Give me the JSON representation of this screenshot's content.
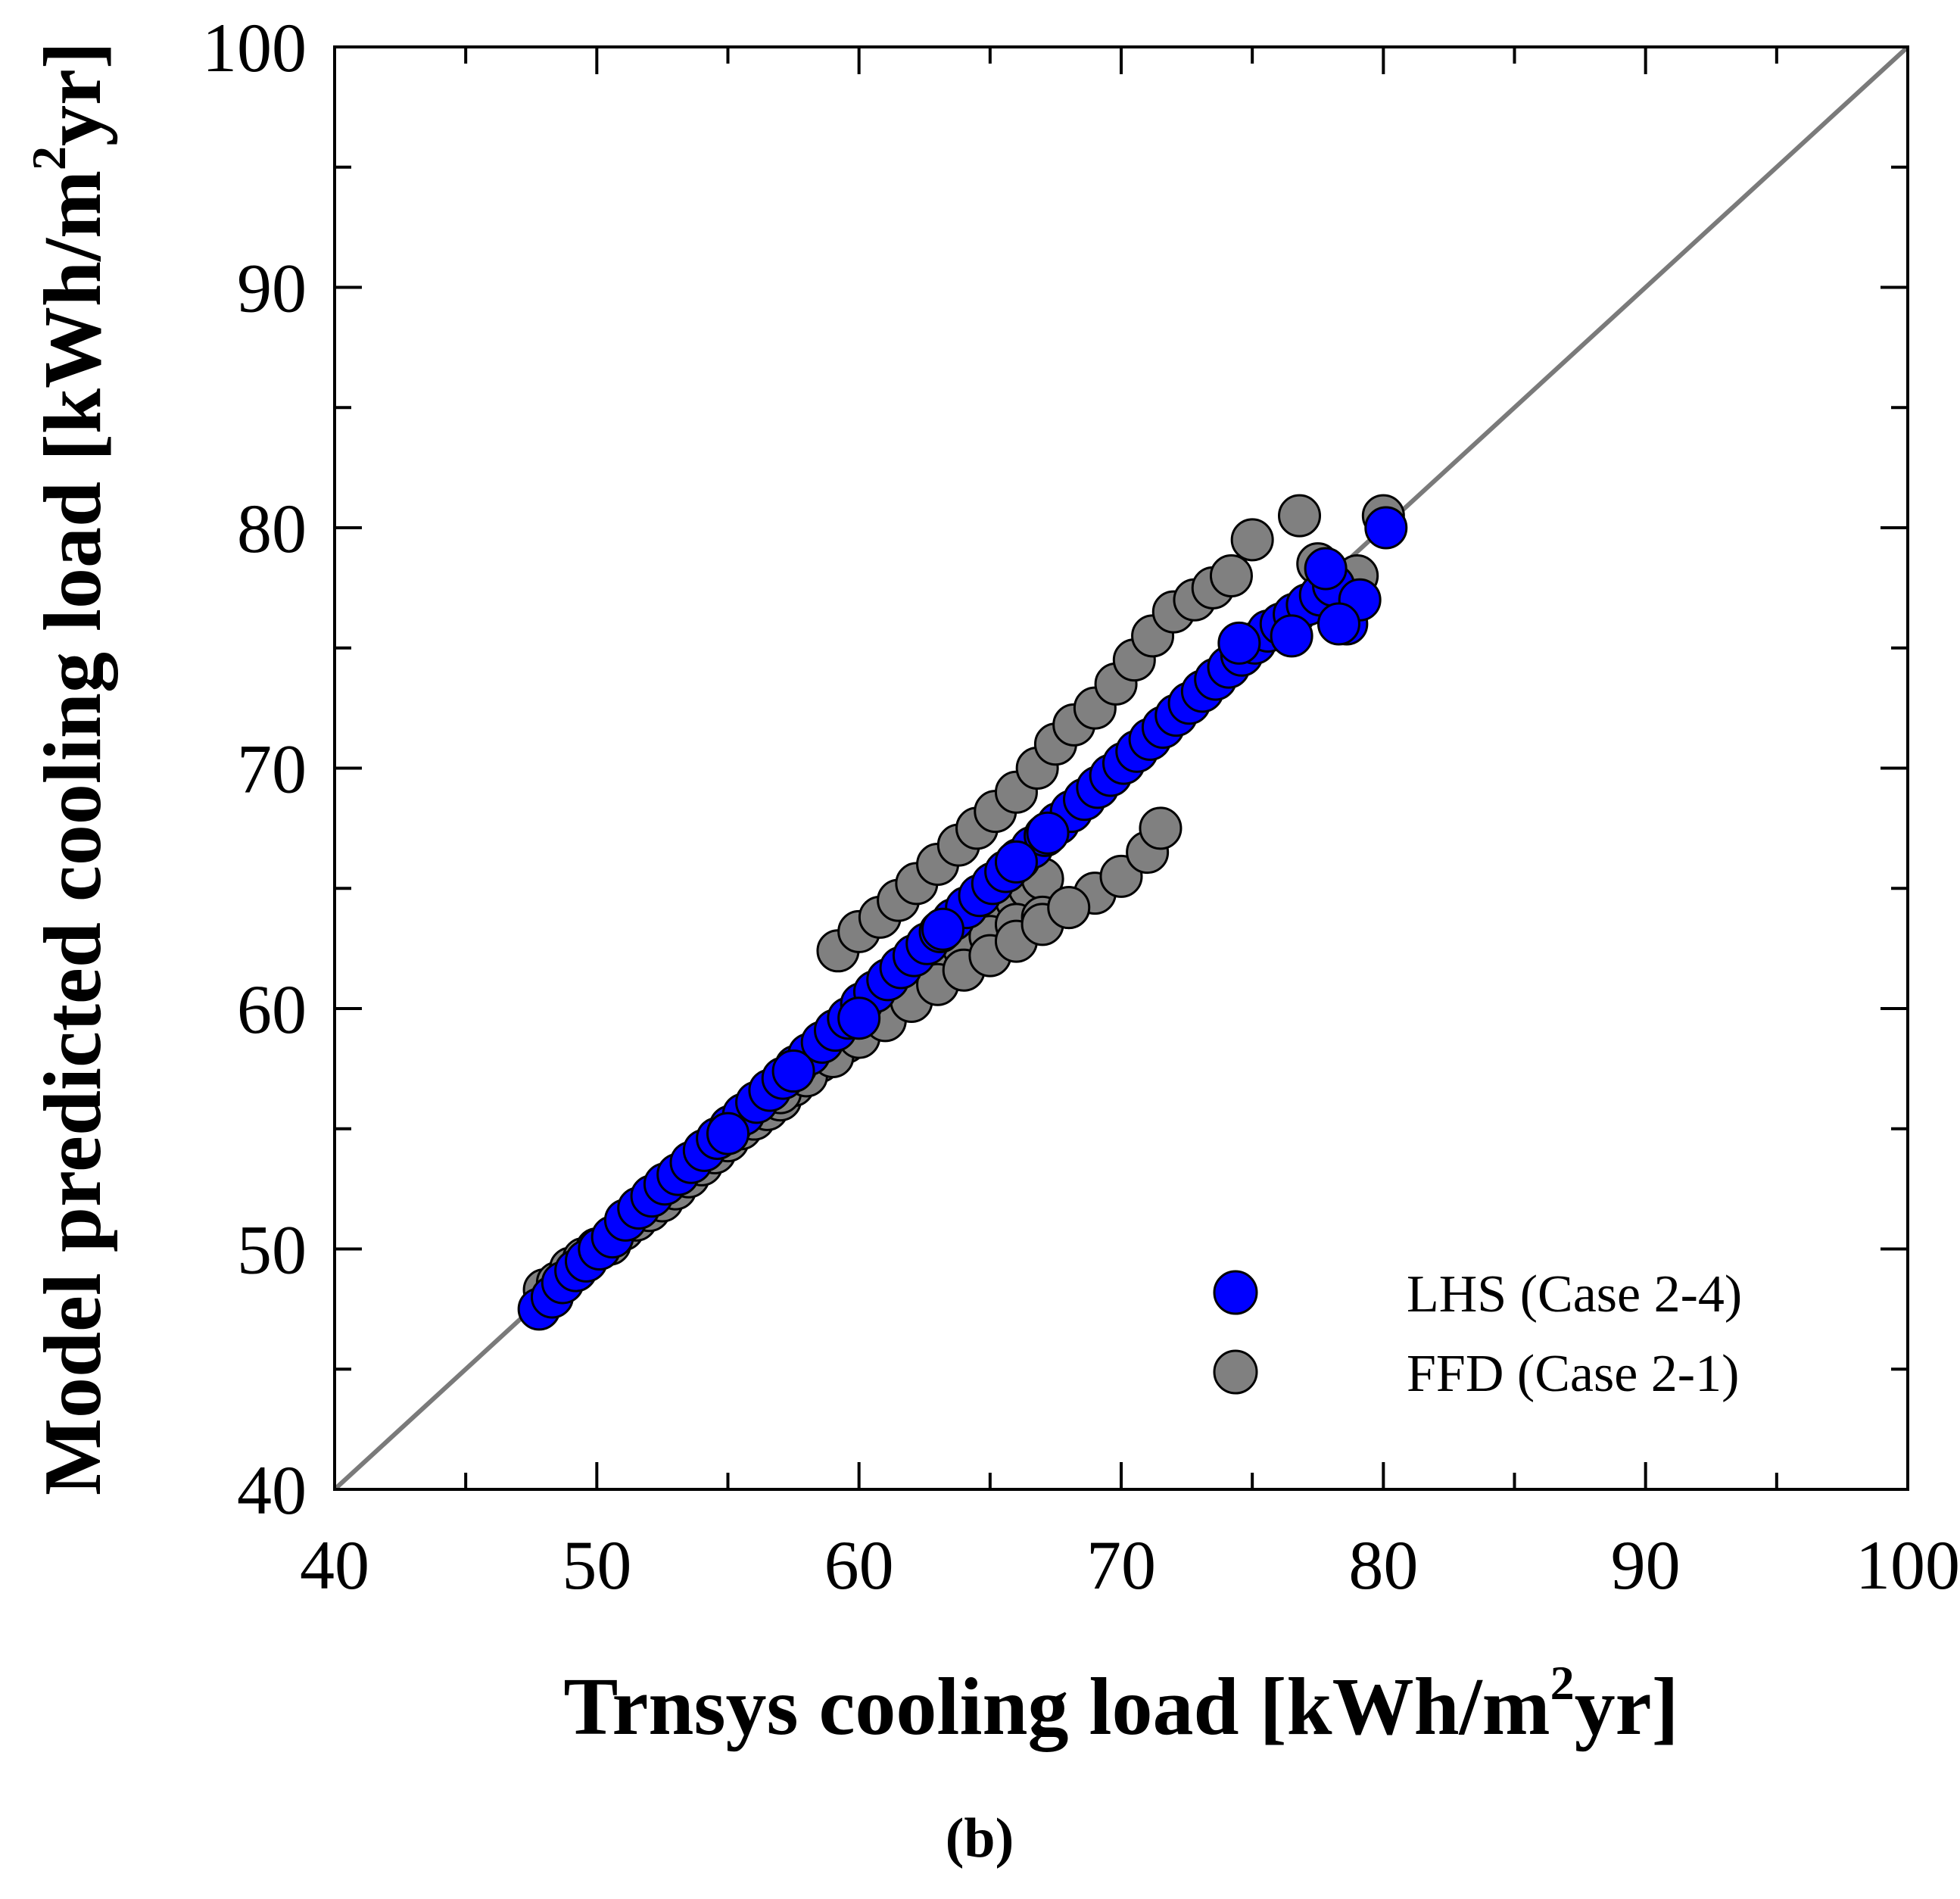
{
  "chart_data": {
    "type": "scatter",
    "xlabel_main": "Trnsys cooling load [kWh/m",
    "xlabel_sup": "2",
    "xlabel_end": "yr]",
    "ylabel_main": "Model predicted cooling load [kWh/m",
    "ylabel_sup": "2",
    "ylabel_end": "yr]",
    "xlim": [
      40,
      100
    ],
    "ylim": [
      40,
      100
    ],
    "x_major_ticks": [
      40,
      50,
      60,
      70,
      80,
      90,
      100
    ],
    "y_major_ticks": [
      40,
      50,
      60,
      70,
      80,
      90,
      100
    ],
    "x_tick_labels": [
      "40",
      "50",
      "60",
      "70",
      "80",
      "90",
      "100"
    ],
    "y_tick_labels": [
      "40",
      "50",
      "60",
      "70",
      "80",
      "90",
      "100"
    ],
    "minor_step": 5,
    "reference_line": {
      "x": [
        40,
        100
      ],
      "y": [
        40,
        100
      ],
      "color": "#7a7a7a"
    },
    "legend_position": "bottom-right",
    "caption": "(b)",
    "series": [
      {
        "name": "FFD (Case 2-1)",
        "color": "#808080",
        "x": [
          48.0,
          48.5,
          49.0,
          49.5,
          50.0,
          50.5,
          51.0,
          51.5,
          52.0,
          52.5,
          53.0,
          53.5,
          54.0,
          54.5,
          55.0,
          55.5,
          56.0,
          56.5,
          57.0,
          57.5,
          58.0,
          58.5,
          59.0,
          59.5,
          60.0,
          60.5,
          61.0,
          61.5,
          62.0,
          62.5,
          63.0,
          63.5,
          64.0,
          64.5,
          65.0,
          65.5,
          66.0,
          66.5,
          67.0,
          59.2,
          60.0,
          60.8,
          61.5,
          62.2,
          63.0,
          63.8,
          64.5,
          65.2,
          66.0,
          66.8,
          67.5,
          68.2,
          69.0,
          69.8,
          70.5,
          71.2,
          72.0,
          72.8,
          73.5,
          74.2,
          75.0,
          76.8,
          77.5,
          78.2,
          79.0,
          80.0,
          61.0,
          62.0,
          63.0,
          64.0,
          65.0,
          66.0,
          67.0,
          68.0,
          69.0,
          70.0,
          71.0,
          71.5,
          57.0,
          58.0,
          59.0,
          60.0,
          61.0,
          62.0,
          63.0,
          64.0,
          65.0,
          66.0,
          67.0,
          68.0
        ],
        "y": [
          48.3,
          48.6,
          49.2,
          49.6,
          50.0,
          50.2,
          50.8,
          51.2,
          51.6,
          52.0,
          52.5,
          53.0,
          53.5,
          54.0,
          54.5,
          55.0,
          55.4,
          55.8,
          56.2,
          56.8,
          57.3,
          57.8,
          58.2,
          58.6,
          59.0,
          59.5,
          60.0,
          60.4,
          60.8,
          61.2,
          61.8,
          62.2,
          62.6,
          63.0,
          63.5,
          64.0,
          64.5,
          65.0,
          65.4,
          62.4,
          63.2,
          63.8,
          64.5,
          65.2,
          66.0,
          66.8,
          67.5,
          68.2,
          69.0,
          70.0,
          71.0,
          71.8,
          72.5,
          73.5,
          74.5,
          75.5,
          76.5,
          77.0,
          77.5,
          78.0,
          79.5,
          80.5,
          78.5,
          77.5,
          78.0,
          80.5,
          61.0,
          61.8,
          62.2,
          62.5,
          63.0,
          63.5,
          63.8,
          64.2,
          64.8,
          65.5,
          66.5,
          67.5,
          56.5,
          57.2,
          58.0,
          58.8,
          59.5,
          60.3,
          61.0,
          61.6,
          62.2,
          62.8,
          63.5,
          64.2
        ]
      },
      {
        "name": "LHS (Case 2-4)",
        "color": "#0000ff",
        "x": [
          47.8,
          48.3,
          48.7,
          49.2,
          49.6,
          50.1,
          50.6,
          51.1,
          51.6,
          52.1,
          52.6,
          53.1,
          53.6,
          54.1,
          54.6,
          55.1,
          55.6,
          56.1,
          56.6,
          57.1,
          57.6,
          58.1,
          58.6,
          59.1,
          59.6,
          60.1,
          60.6,
          61.1,
          61.6,
          62.1,
          62.6,
          63.1,
          63.6,
          64.1,
          64.6,
          65.1,
          65.6,
          66.1,
          66.6,
          67.1,
          67.6,
          68.1,
          68.6,
          69.1,
          69.6,
          70.1,
          70.6,
          71.1,
          71.6,
          72.1,
          72.6,
          73.1,
          73.6,
          74.1,
          74.6,
          75.1,
          75.6,
          76.1,
          76.6,
          77.1,
          77.6,
          78.1,
          78.6,
          79.1,
          80.1,
          74.5,
          77.8,
          76.5,
          78.3,
          55.0,
          57.5,
          60.0,
          63.2,
          66.0,
          67.2
        ],
        "y": [
          47.5,
          48.0,
          48.6,
          49.1,
          49.5,
          50.0,
          50.5,
          51.2,
          51.7,
          52.2,
          52.7,
          53.1,
          53.6,
          54.1,
          54.6,
          55.1,
          55.6,
          56.1,
          56.6,
          57.1,
          57.6,
          58.1,
          58.6,
          59.1,
          59.6,
          60.2,
          60.7,
          61.2,
          61.7,
          62.2,
          62.7,
          63.2,
          63.7,
          64.2,
          64.7,
          65.2,
          65.7,
          66.2,
          66.7,
          67.2,
          67.7,
          68.2,
          68.7,
          69.2,
          69.7,
          70.2,
          70.7,
          71.2,
          71.7,
          72.2,
          72.7,
          73.2,
          73.7,
          74.2,
          74.7,
          75.2,
          75.7,
          76.0,
          76.4,
          76.8,
          77.2,
          77.6,
          76.0,
          77.0,
          80.0,
          75.2,
          78.3,
          75.5,
          76.0,
          54.8,
          57.4,
          59.6,
          63.3,
          66.1,
          67.3
        ]
      }
    ],
    "legend": [
      {
        "label": "LHS (Case 2-4)",
        "color": "#0000ff"
      },
      {
        "label": "FFD (Case 2-1)",
        "color": "#808080"
      }
    ]
  }
}
